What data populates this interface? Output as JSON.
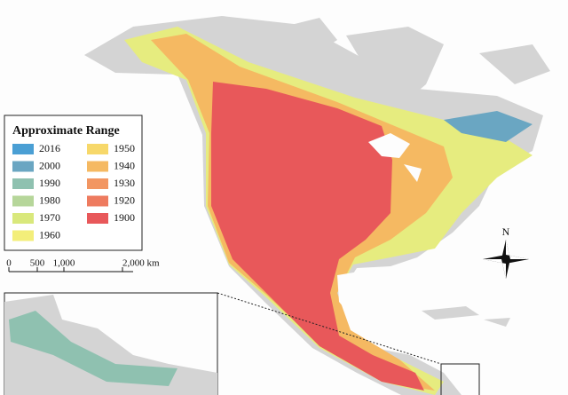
{
  "legend": {
    "title": "Approximate Range",
    "items": [
      {
        "label": "2016",
        "color": "#4a9fd4"
      },
      {
        "label": "2000",
        "color": "#6aa6c2"
      },
      {
        "label": "1990",
        "color": "#8fc1b0"
      },
      {
        "label": "1980",
        "color": "#b6d69a"
      },
      {
        "label": "1970",
        "color": "#d9e87c"
      },
      {
        "label": "1960",
        "color": "#f3ee7a"
      },
      {
        "label": "1950",
        "color": "#f7d86a"
      },
      {
        "label": "1940",
        "color": "#f5b962"
      },
      {
        "label": "1930",
        "color": "#f29662"
      },
      {
        "label": "1920",
        "color": "#ee7b5f"
      },
      {
        "label": "1900",
        "color": "#e8585a"
      }
    ]
  },
  "scale_bar": {
    "labels": [
      "0",
      "500",
      "1,000",
      "2,000 km"
    ]
  },
  "north_arrow": {
    "label": "N"
  }
}
